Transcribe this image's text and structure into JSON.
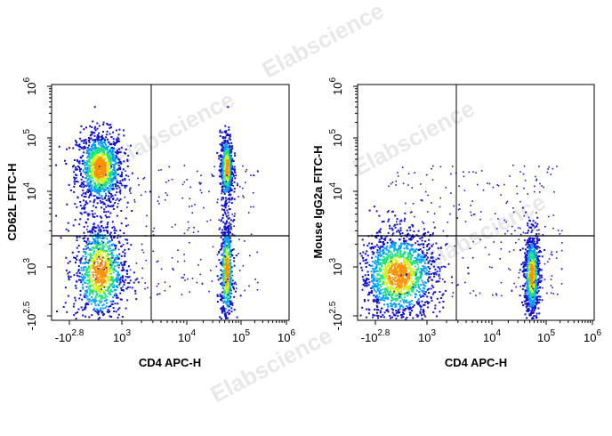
{
  "watermark": "Elabscience",
  "chart_data": [
    {
      "type": "scatter",
      "style": "density flow-cytometry dot plot, biexponential axes, quadrant gates",
      "xlabel": "CD4 APC-H",
      "ylabel": "CD62L FITC-H",
      "x_ticks": [
        {
          "base": "-10",
          "exp": "2.8"
        },
        {
          "base": "10",
          "exp": "3"
        },
        {
          "base": "10",
          "exp": "4"
        },
        {
          "base": "10",
          "exp": "5"
        },
        {
          "base": "10",
          "exp": "6"
        }
      ],
      "y_ticks": [
        {
          "base": "-10",
          "exp": "2.5"
        },
        {
          "base": "10",
          "exp": "3"
        },
        {
          "base": "10",
          "exp": "4"
        },
        {
          "base": "10",
          "exp": "5"
        },
        {
          "base": "10",
          "exp": "6"
        }
      ],
      "gate": {
        "x": 3000,
        "y": 2500
      },
      "populations": [
        {
          "name": "CD4- CD62L+",
          "center_log": [
            2.65,
            4.45
          ],
          "spread": [
            0.18,
            0.35
          ],
          "relative_count": 3.0
        },
        {
          "name": "CD4- CD62L lo",
          "center_log": [
            2.65,
            2.95
          ],
          "spread": [
            0.2,
            0.35
          ],
          "relative_count": 2.6
        },
        {
          "name": "CD4+ CD62L+",
          "center_log": [
            4.72,
            4.45
          ],
          "spread": [
            0.06,
            0.32
          ],
          "relative_count": 1.6
        },
        {
          "name": "CD4+ CD62L lo",
          "center_log": [
            4.72,
            2.95
          ],
          "spread": [
            0.06,
            0.35
          ],
          "relative_count": 1.6
        }
      ],
      "grid": false,
      "legend": "none"
    },
    {
      "type": "scatter",
      "style": "density flow-cytometry dot plot, biexponential axes, quadrant gates",
      "xlabel": "CD4 APC-H",
      "ylabel": "Mouse IgG2a FITC-H",
      "x_ticks": [
        {
          "base": "-10",
          "exp": "2.8"
        },
        {
          "base": "10",
          "exp": "3"
        },
        {
          "base": "10",
          "exp": "4"
        },
        {
          "base": "10",
          "exp": "5"
        },
        {
          "base": "10",
          "exp": "6"
        }
      ],
      "y_ticks": [
        {
          "base": "-10",
          "exp": "2.5"
        },
        {
          "base": "10",
          "exp": "3"
        },
        {
          "base": "10",
          "exp": "4"
        },
        {
          "base": "10",
          "exp": "5"
        },
        {
          "base": "10",
          "exp": "6"
        }
      ],
      "gate": {
        "x": 3000,
        "y": 2500
      },
      "populations": [
        {
          "name": "CD4- isotype",
          "center_log": [
            2.55,
            2.9
          ],
          "spread": [
            0.3,
            0.3
          ],
          "relative_count": 4.0
        },
        {
          "name": "CD4+ isotype",
          "center_log": [
            4.72,
            2.9
          ],
          "spread": [
            0.07,
            0.28
          ],
          "relative_count": 2.2
        }
      ],
      "grid": false,
      "legend": "none"
    }
  ]
}
